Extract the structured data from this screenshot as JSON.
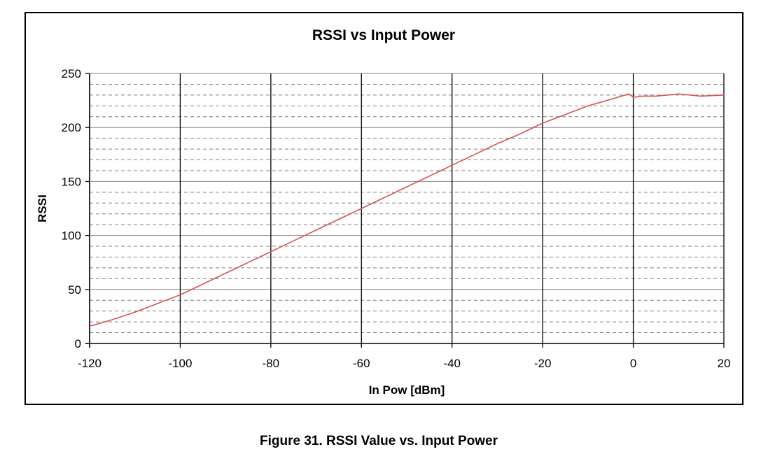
{
  "figure": {
    "caption": "Figure 31. RSSI Value vs. Input Power"
  },
  "chart_data": {
    "type": "line",
    "title": "RSSI vs Input Power",
    "xlabel": "In Pow [dBm]",
    "ylabel": "RSSI",
    "xlim": [
      -120,
      20
    ],
    "ylim": [
      0,
      250
    ],
    "x_ticks": [
      -120,
      -100,
      -80,
      -60,
      -40,
      -20,
      0,
      20
    ],
    "y_ticks": [
      0,
      50,
      100,
      150,
      200,
      250
    ],
    "grid": "major solid, minor dashed",
    "legend": "none",
    "series": [
      {
        "color": "#d9534f",
        "x": [
          -120,
          -115,
          -110,
          -105,
          -100,
          -95,
          -90,
          -85,
          -80,
          -75,
          -70,
          -65,
          -60,
          -55,
          -50,
          -45,
          -40,
          -35,
          -30,
          -25,
          -20,
          -15,
          -10,
          -5,
          -1,
          0,
          2,
          5,
          10,
          15,
          20
        ],
        "y": [
          16,
          22,
          29,
          37,
          45,
          55,
          65,
          75,
          85,
          95,
          105,
          115,
          125,
          135,
          145,
          155,
          165,
          175,
          185,
          194,
          204,
          212,
          220,
          226,
          231,
          228,
          229,
          229,
          231,
          229,
          230
        ]
      }
    ]
  }
}
